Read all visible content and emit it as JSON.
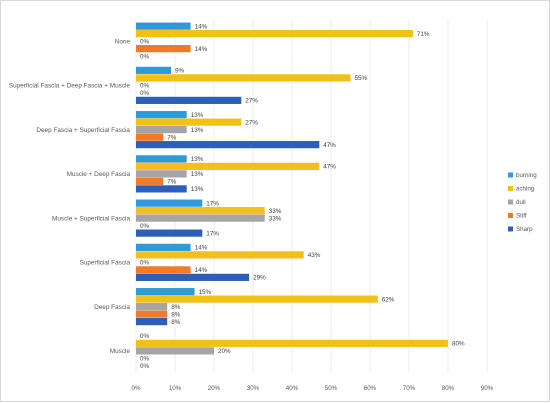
{
  "chart_data": {
    "type": "bar",
    "orientation": "horizontal",
    "categories": [
      "None",
      "Superficial Fascia + Deep Fascia + Muscle",
      "Deep Fascia + Superficial Fascia",
      "Muscle + Deep Fascia",
      "Muscle + Superficial Fascia",
      "Superficial Fascia",
      "Deep Fascia",
      "Muscle"
    ],
    "series": [
      {
        "name": "burning",
        "color": "#2e9bd6",
        "values": [
          14,
          9,
          13,
          13,
          17,
          14,
          15,
          0
        ],
        "labels": [
          "14%",
          "9%",
          "13%",
          "13%",
          "17%",
          "14%",
          "15%",
          "0%"
        ]
      },
      {
        "name": "aching",
        "color": "#f2c018",
        "values": [
          71,
          55,
          27,
          47,
          33,
          43,
          62,
          80
        ],
        "labels": [
          "71%",
          "55%",
          "27%",
          "47%",
          "33%",
          "43%",
          "62%",
          "80%"
        ]
      },
      {
        "name": "dull",
        "color": "#a5a5a5",
        "values": [
          0,
          0,
          13,
          13,
          33,
          0,
          8,
          20
        ],
        "labels": [
          "0%",
          "0%",
          "13%",
          "13%",
          "33%",
          "0%",
          "8%",
          "20%"
        ]
      },
      {
        "name": "Stiff",
        "color": "#f07a26",
        "values": [
          14,
          0,
          7,
          7,
          0,
          14,
          8,
          0
        ],
        "labels": [
          "14%",
          "0%",
          "7%",
          "7%",
          "0%",
          "14%",
          "8%",
          "0%"
        ]
      },
      {
        "name": "Sharp",
        "color": "#2e5fb8",
        "values": [
          0,
          27,
          47,
          13,
          17,
          29,
          8,
          0
        ],
        "labels": [
          "0%",
          "27%",
          "47%",
          "13%",
          "17%",
          "29%",
          "8%",
          "0%"
        ]
      }
    ],
    "xlim": [
      0,
      90
    ],
    "x_ticks": [
      "0%",
      "10%",
      "20%",
      "30%",
      "40%",
      "50%",
      "60%",
      "70%",
      "80%",
      "90%"
    ],
    "grid": true,
    "legend_position": "right"
  }
}
